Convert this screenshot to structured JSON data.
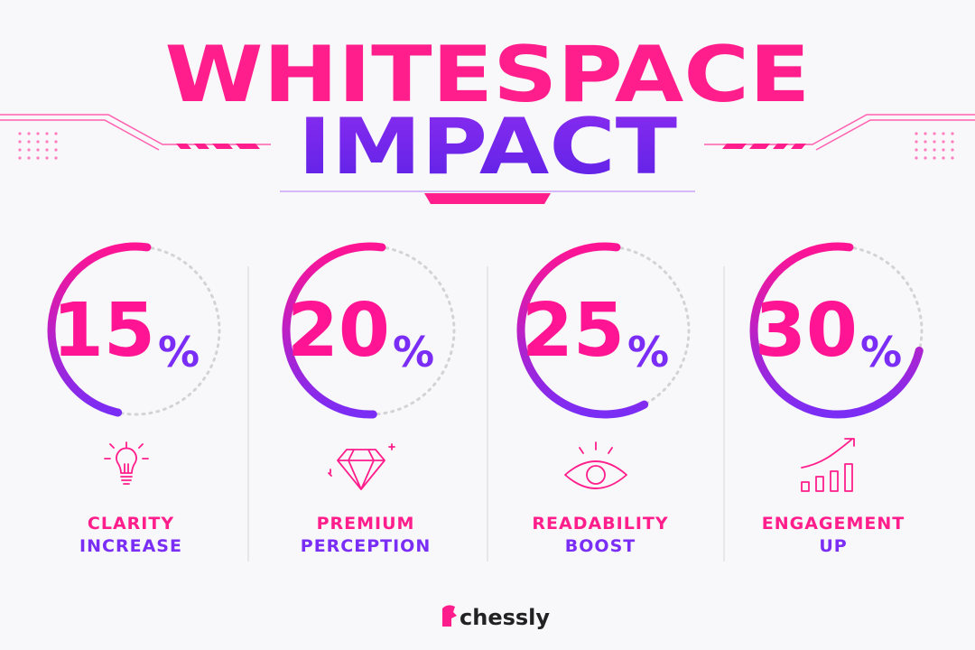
{
  "title": {
    "line1": "WHITESPACE",
    "line2": "IMPACT"
  },
  "stats": [
    {
      "value": 15,
      "unit": "%",
      "label": [
        "CLARITY",
        "INCREASE"
      ]
    },
    {
      "value": 20,
      "unit": "%",
      "label": [
        "PREMIUM",
        "PERCEPTION"
      ]
    },
    {
      "value": 25,
      "unit": "%",
      "label": [
        "READABILITY",
        "BOOST"
      ]
    },
    {
      "value": 30,
      "unit": "%",
      "label": [
        "ENGAGEMENT",
        "UP"
      ]
    }
  ],
  "brand": "chessly"
}
